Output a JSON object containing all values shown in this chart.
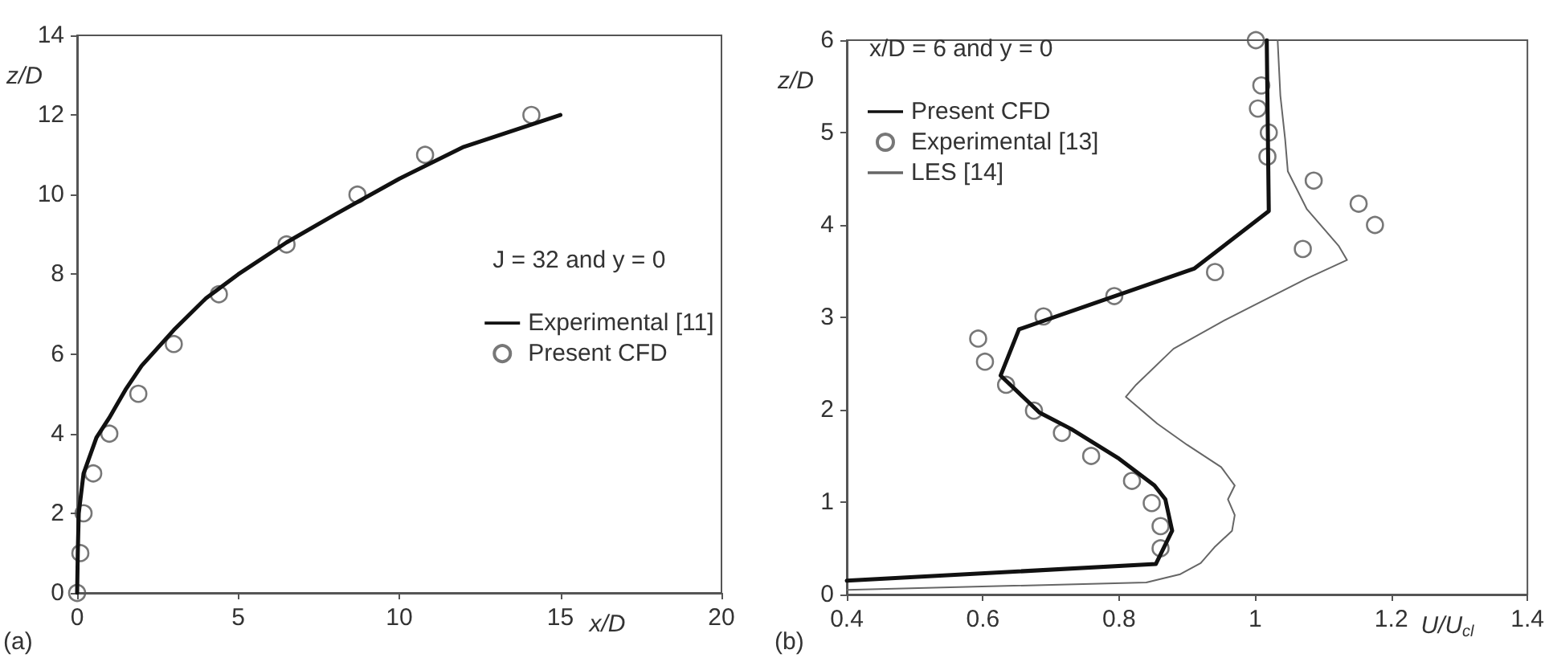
{
  "chart_data": [
    {
      "type": "scatter",
      "xlabel": "x/D",
      "ylabel": "z/D",
      "xlim": [
        0,
        20
      ],
      "xticks": [
        0,
        5,
        10,
        15,
        20
      ],
      "ylim": [
        0,
        14
      ],
      "yticks": [
        0,
        2,
        4,
        6,
        8,
        10,
        12,
        14
      ],
      "grid": false,
      "legend": "right",
      "annotations": [
        "J = 32 and y = 0",
        "(a)"
      ],
      "series": [
        {
          "name": "Experimental [11]",
          "type": "line",
          "marker": "none",
          "color": "#111111",
          "x": [
            0,
            0.02,
            0.05,
            0.2,
            0.6,
            1,
            1.5,
            2,
            3,
            4,
            5,
            6.5,
            8,
            10,
            12,
            15
          ],
          "values": [
            0,
            1,
            2,
            3,
            3.9,
            4.4,
            5.1,
            5.7,
            6.6,
            7.4,
            8.0,
            8.8,
            9.5,
            10.4,
            11.2,
            12
          ]
        },
        {
          "name": "Present CFD",
          "marker": "circle",
          "color": "#555555",
          "x": [
            0,
            0.1,
            0.2,
            0.5,
            1,
            1.9,
            3,
            4.4,
            6.5,
            8.7,
            10.8,
            14.1
          ],
          "values": [
            0,
            1,
            2,
            3,
            4,
            5,
            6.25,
            7.5,
            8.75,
            10,
            11,
            12
          ]
        }
      ]
    },
    {
      "type": "scatter",
      "xlabel": "U/U$_{cl}$",
      "ylabel": "z/D",
      "xlim": [
        0.4,
        1.4
      ],
      "xticks": [
        0.4,
        0.6,
        0.8,
        1,
        1.2,
        1.4
      ],
      "ylim": [
        0,
        6
      ],
      "yticks": [
        0,
        1,
        2,
        3,
        4,
        5,
        6
      ],
      "grid": false,
      "legend": "top left",
      "annotations": [
        "x/D = 6 and y = 0",
        "(b)"
      ],
      "series": [
        {
          "name": "Present CFD",
          "type": "line",
          "marker": "none",
          "color": "#111111",
          "x": [
            0.4,
            0.854,
            0.878,
            0.868,
            0.852,
            0.8,
            0.73,
            0.683,
            0.626,
            0.653,
            0.911,
            1.02,
            1.017
          ],
          "values": [
            0.15,
            0.33,
            0.69,
            1.03,
            1.18,
            1.47,
            1.79,
            1.97,
            2.37,
            2.87,
            3.53,
            4.15,
            6
          ]
        },
        {
          "name": "Experimental [13]",
          "marker": "circle",
          "color": "#555555",
          "x": [
            1.001,
            1.009,
            1.004,
            1.02,
            1.018,
            1.086,
            1.152,
            1.176,
            1.07,
            0.941,
            0.793,
            0.689,
            0.593,
            0.603,
            0.634,
            0.675,
            0.716,
            0.759,
            0.819,
            0.848,
            0.861,
            0.861
          ],
          "values": [
            6.0,
            5.51,
            5.26,
            5.0,
            4.74,
            4.48,
            4.23,
            4.0,
            3.74,
            3.49,
            3.23,
            3.01,
            2.77,
            2.52,
            2.27,
            1.99,
            1.75,
            1.5,
            1.23,
            0.99,
            0.74,
            0.5
          ]
        },
        {
          "name": "LES [14]",
          "type": "line",
          "marker": "none",
          "color": "#666666",
          "x": [
            0.4,
            0.84,
            0.89,
            0.92,
            0.94,
            0.966,
            0.97,
            0.96,
            0.97,
            0.95,
            0.9,
            0.856,
            0.81,
            0.825,
            0.88,
            0.958,
            0.998,
            1.076,
            1.135,
            1.123,
            1.076,
            1.048,
            1.044,
            1.037,
            1.033
          ],
          "values": [
            0.05,
            0.13,
            0.22,
            0.34,
            0.51,
            0.69,
            0.86,
            1.03,
            1.18,
            1.38,
            1.62,
            1.85,
            2.14,
            2.27,
            2.66,
            2.98,
            3.13,
            3.42,
            3.62,
            3.77,
            4.17,
            4.58,
            4.93,
            5.4,
            6
          ]
        }
      ]
    }
  ]
}
